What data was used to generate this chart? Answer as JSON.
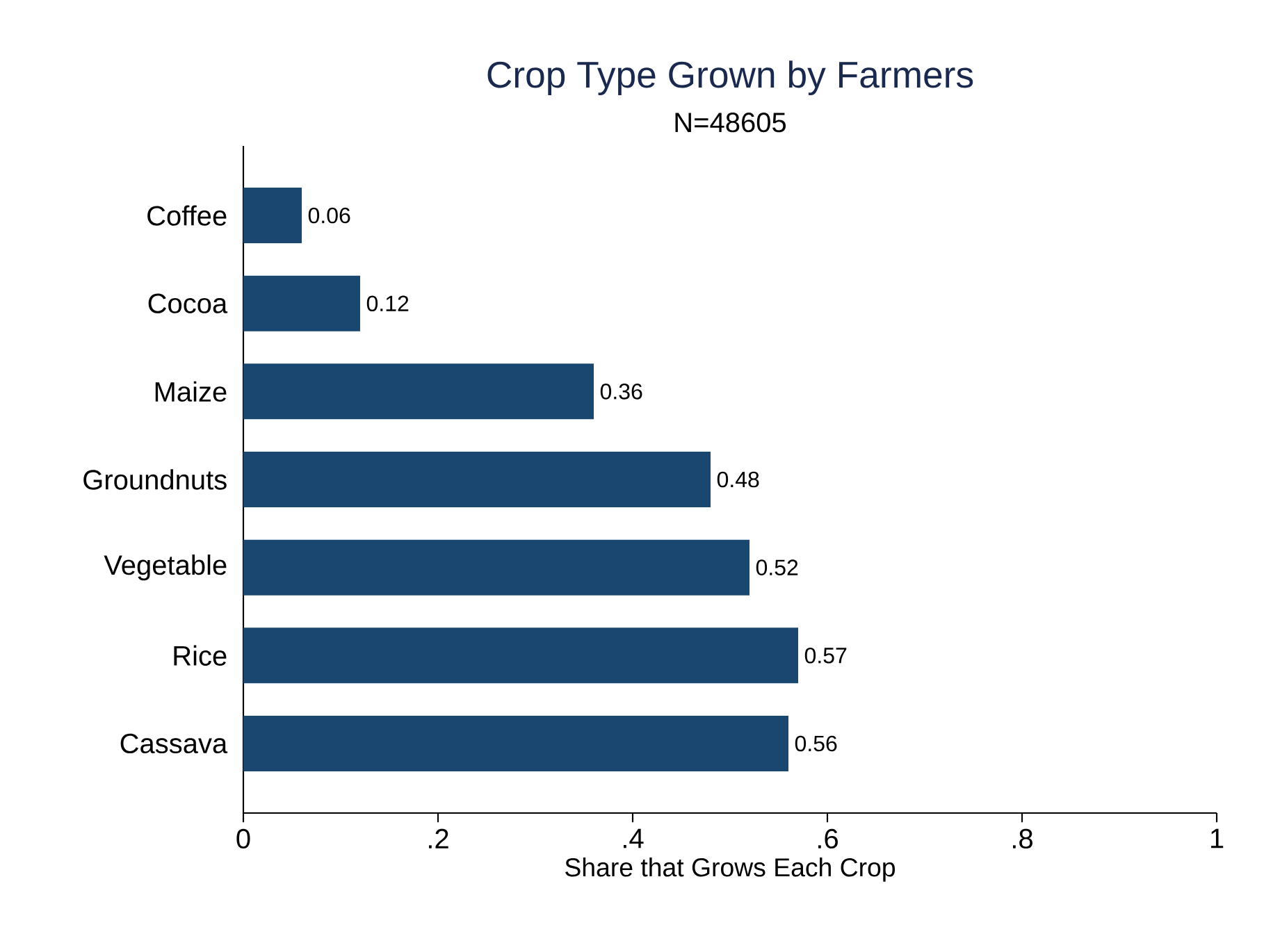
{
  "chart_data": {
    "type": "bar",
    "orientation": "horizontal",
    "title": "Crop Type Grown by Farmers",
    "subtitle": "N=48605",
    "xlabel": "Share that Grows Each Crop",
    "categories": [
      "Coffee",
      "Cocoa",
      "Maize",
      "Groundnuts",
      "Vegetable",
      "Rice",
      "Cassava"
    ],
    "values": [
      0.06,
      0.12,
      0.36,
      0.48,
      0.52,
      0.57,
      0.56
    ],
    "color": "#1a476f",
    "data_labels": true,
    "grid": false,
    "xlim": [
      0,
      1
    ],
    "xticks": [
      0,
      {
        "value": 0.2,
        "label": ".2"
      },
      {
        "value": 0.4,
        "label": ".4"
      },
      {
        "value": 0.6,
        "label": ".6"
      },
      {
        "value": 0.8,
        "label": ".8"
      },
      1
    ]
  }
}
